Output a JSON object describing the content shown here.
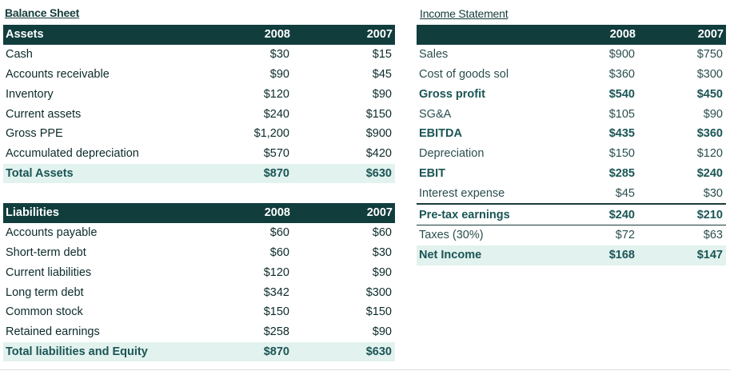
{
  "balance_sheet": {
    "title": "Balance Sheet",
    "assets": {
      "header": {
        "label": "Assets",
        "col1": "2008",
        "col2": "2007"
      },
      "rows": [
        {
          "label": "Cash",
          "y2008": "$30",
          "y2007": "$15"
        },
        {
          "label": "Accounts receivable",
          "y2008": "$90",
          "y2007": "$45"
        },
        {
          "label": "Inventory",
          "y2008": "$120",
          "y2007": "$90"
        },
        {
          "label": "Current assets",
          "y2008": "$240",
          "y2007": "$150"
        },
        {
          "label": "Gross PPE",
          "y2008": "$1,200",
          "y2007": "$900"
        },
        {
          "label": "Accumulated depreciation",
          "y2008": "$570",
          "y2007": "$420"
        }
      ],
      "total": {
        "label": "Total Assets",
        "y2008": "$870",
        "y2007": "$630"
      }
    },
    "liabilities": {
      "header": {
        "label": "Liabilities",
        "col1": "2008",
        "col2": "2007"
      },
      "rows": [
        {
          "label": "Accounts payable",
          "y2008": "$60",
          "y2007": "$60"
        },
        {
          "label": "Short-term debt",
          "y2008": "$60",
          "y2007": "$30"
        },
        {
          "label": "Current liabilities",
          "y2008": "$120",
          "y2007": "$90"
        },
        {
          "label": "Long term debt",
          "y2008": "$342",
          "y2007": "$300"
        },
        {
          "label": "Common stock",
          "y2008": "$150",
          "y2007": "$150"
        },
        {
          "label": "Retained earnings",
          "y2008": "$258",
          "y2007": "$90"
        }
      ],
      "total": {
        "label": "Total liabilities and Equity",
        "y2008": "$870",
        "y2007": "$630"
      }
    }
  },
  "income_statement": {
    "title": "Income Statement",
    "header": {
      "label": "",
      "col1": "2008",
      "col2": "2007"
    },
    "rows": [
      {
        "label": "Sales",
        "y2008": "$900",
        "y2007": "$750"
      },
      {
        "label": "Cost of goods sol",
        "y2008": "$360",
        "y2007": "$300"
      },
      {
        "label": "Gross profit",
        "y2008": "$540",
        "y2007": "$450"
      },
      {
        "label": "SG&A",
        "y2008": "$105",
        "y2007": "$90"
      },
      {
        "label": "EBITDA",
        "y2008": "$435",
        "y2007": "$360"
      },
      {
        "label": "Depreciation",
        "y2008": "$150",
        "y2007": "$120"
      },
      {
        "label": "EBIT",
        "y2008": "$285",
        "y2007": "$240"
      },
      {
        "label": "Interest expense",
        "y2008": "$45",
        "y2007": "$30"
      },
      {
        "label": "Pre-tax earnings",
        "y2008": "$240",
        "y2007": "$210"
      },
      {
        "label": "Taxes (30%)",
        "y2008": "$72",
        "y2007": "$63"
      },
      {
        "label": "Net Income",
        "y2008": "$168",
        "y2007": "$147"
      }
    ]
  },
  "colors": {
    "header_bg": "#113d3d",
    "total_bg": "#e2f2ee",
    "text": "#0d2a2a"
  }
}
